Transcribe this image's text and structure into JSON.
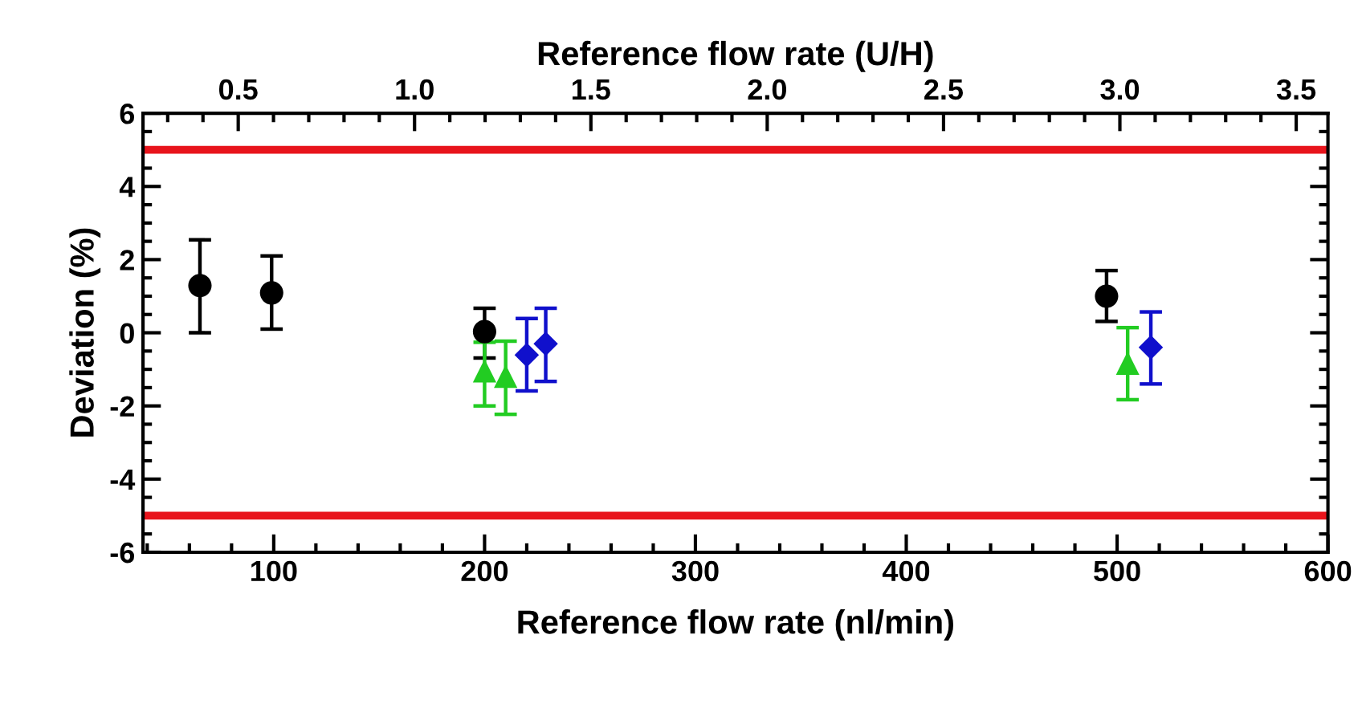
{
  "chart_data": {
    "type": "scatter",
    "xlabel": "Reference flow rate (nl/min)",
    "ylabel": "Deviation (%)",
    "x2label": "Reference flow rate (U/H)",
    "xlim": [
      38,
      600
    ],
    "xticks": [
      100,
      200,
      300,
      400,
      500,
      600
    ],
    "x2lim": [
      0.23,
      3.59
    ],
    "x2ticks": [
      0.5,
      {
        "value": 1,
        "label": "1.0"
      },
      1.5,
      {
        "value": 2,
        "label": "2.0"
      },
      2.5,
      {
        "value": 3,
        "label": "3.0"
      },
      3.5
    ],
    "ylim": [
      -6,
      6
    ],
    "yticks": [
      -6,
      -4,
      -2,
      0,
      2,
      4,
      6
    ],
    "grid": false,
    "legend": false,
    "series": [
      {
        "color": "#000000",
        "marker": "circle",
        "x": [
          65,
          99,
          200,
          495
        ],
        "values": [
          1.29,
          1.09,
          0.03,
          1.0
        ],
        "errors": [
          [
            0,
            2.54
          ],
          [
            0.1,
            2.1
          ],
          [
            -0.69,
            0.67
          ],
          [
            0.31,
            1.7
          ]
        ]
      },
      {
        "color": "#22cc22",
        "marker": "triangle",
        "x": [
          200,
          210,
          505
        ],
        "values": [
          -1.04,
          -1.19,
          -0.83
        ],
        "errors": [
          [
            -2.0,
            -0.26
          ],
          [
            -2.23,
            -0.23
          ],
          [
            -1.83,
            0.14
          ]
        ]
      },
      {
        "color": "#1010cc",
        "marker": "diamond",
        "x": [
          220,
          229,
          516
        ],
        "values": [
          -0.61,
          -0.3,
          -0.4
        ],
        "errors": [
          [
            -1.59,
            0.39
          ],
          [
            -1.33,
            0.67
          ],
          [
            -1.4,
            0.57
          ]
        ]
      }
    ],
    "ref_lines": [
      {
        "axis": "y",
        "value": 5,
        "color": "#e8141c"
      },
      {
        "axis": "y",
        "value": -5,
        "color": "#e8141c"
      }
    ]
  }
}
